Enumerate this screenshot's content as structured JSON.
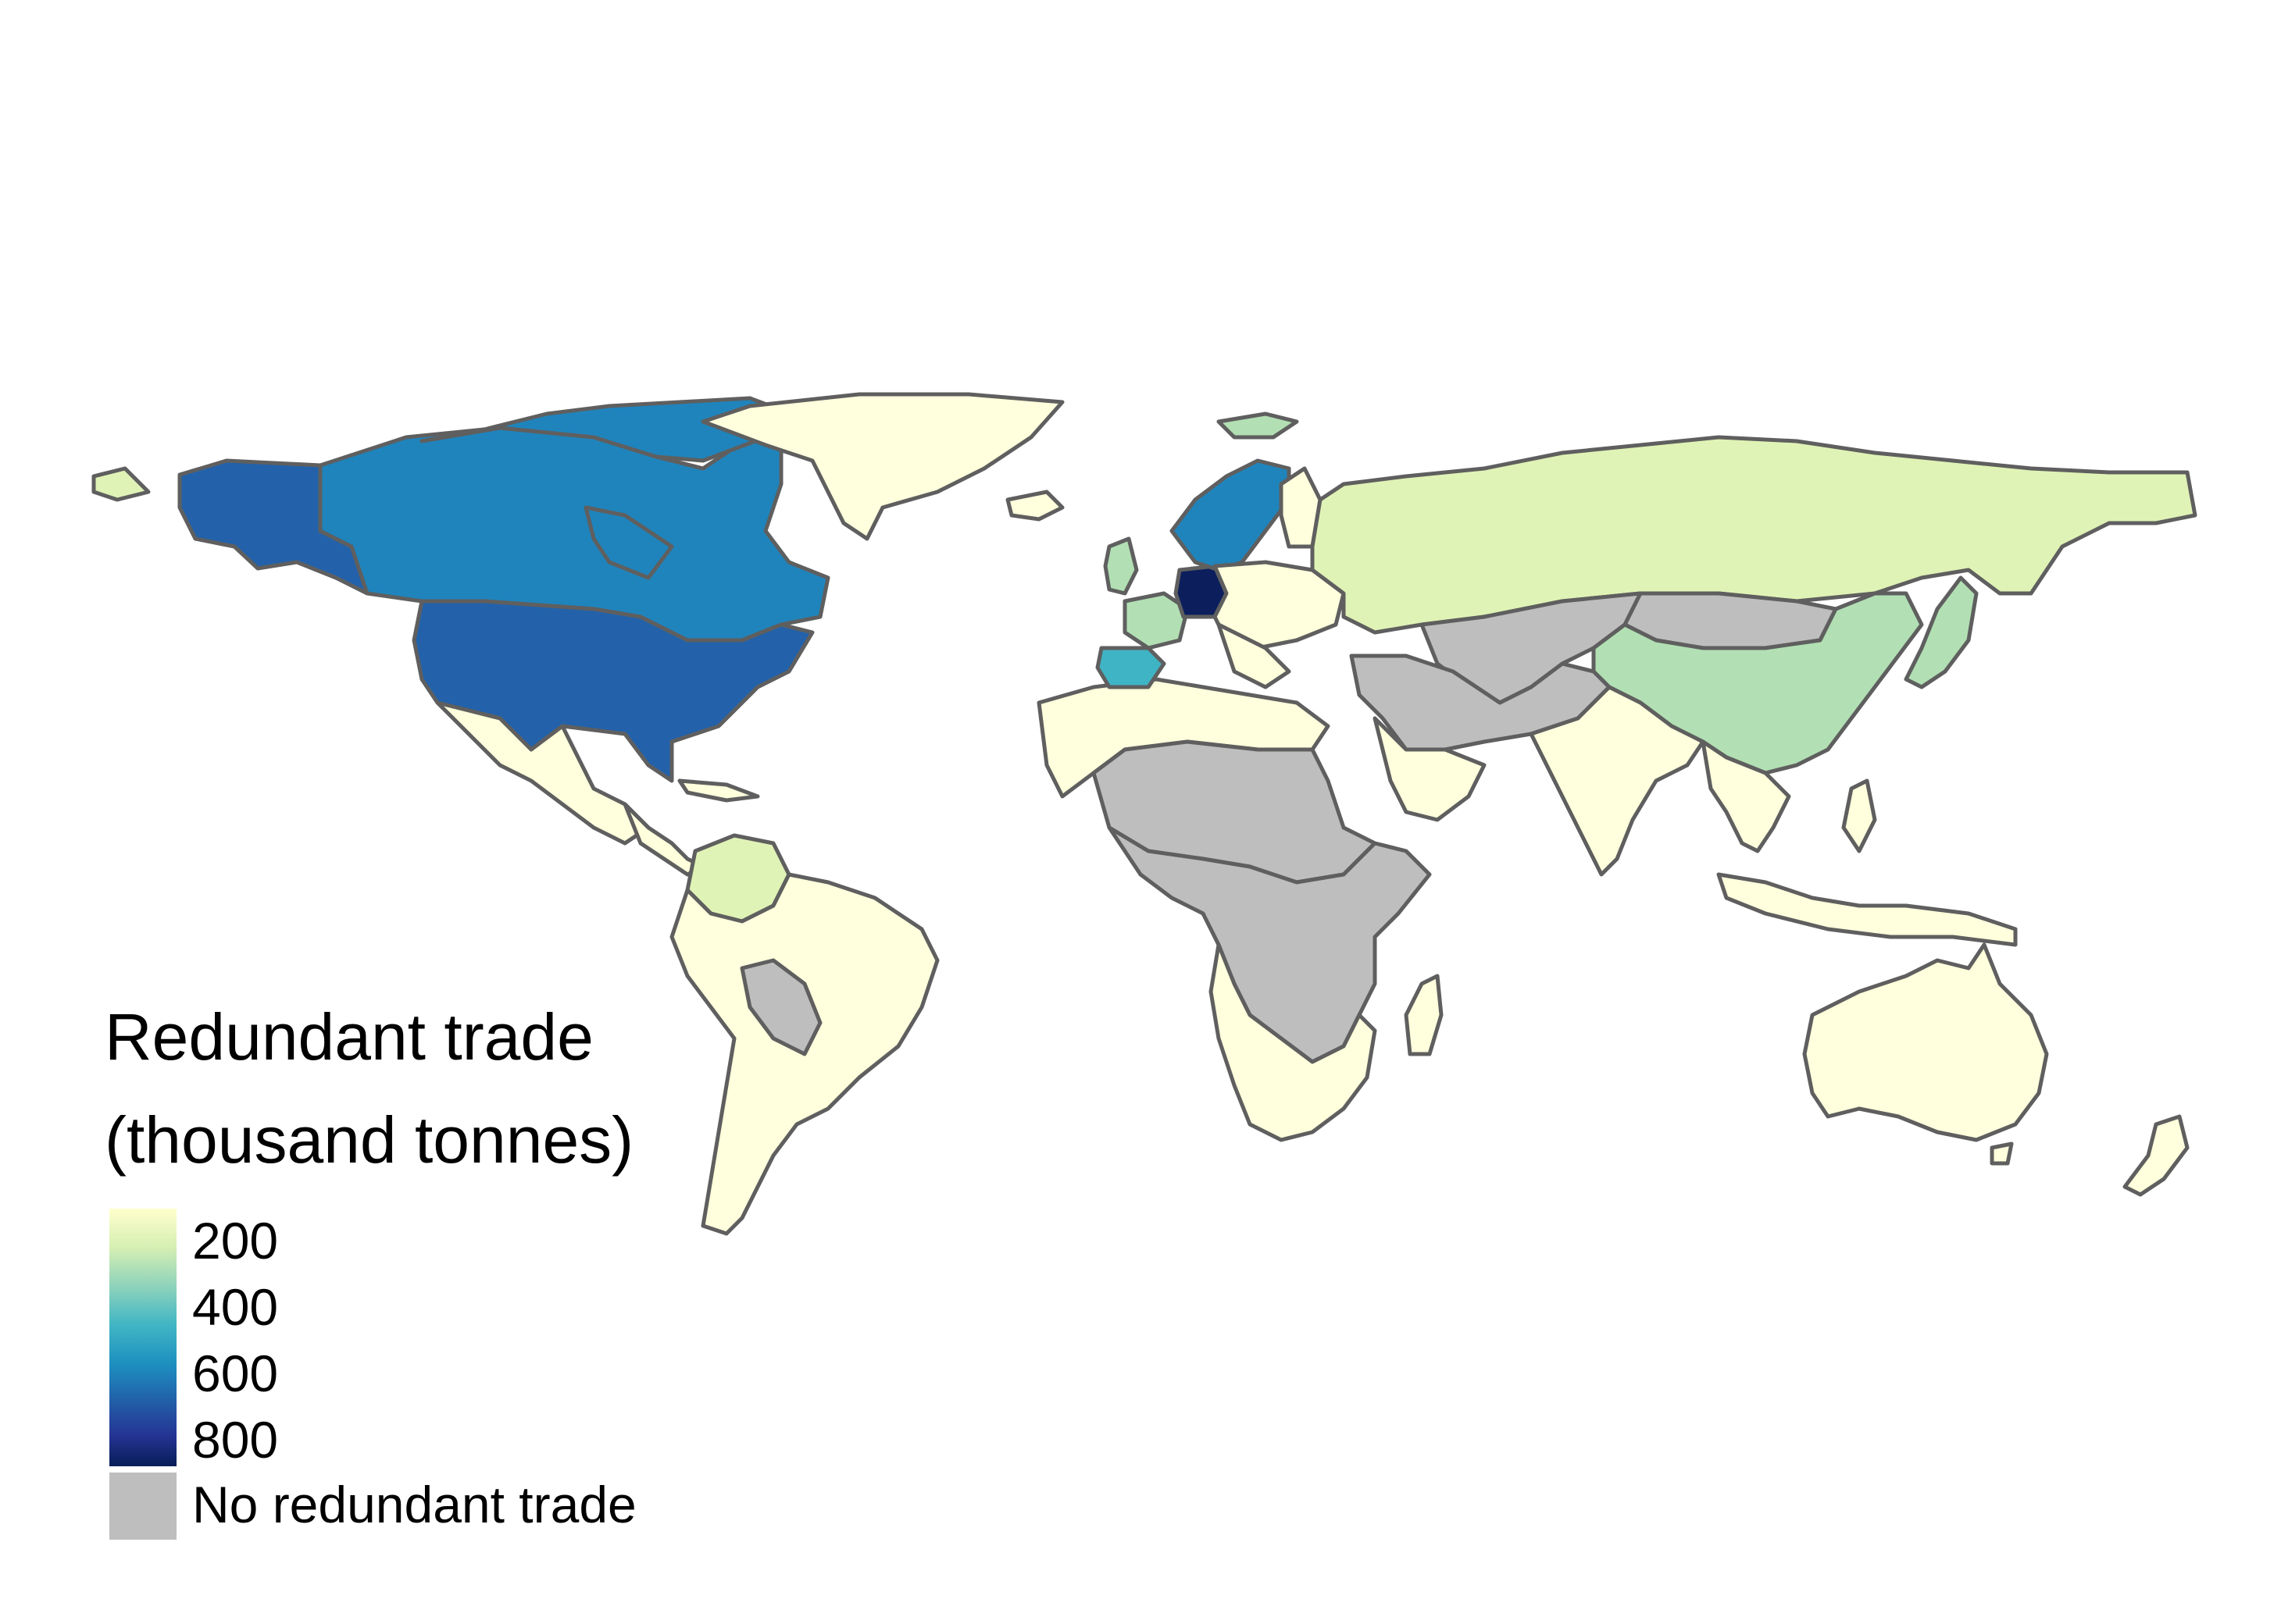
{
  "legend": {
    "title_line1": "Redundant trade",
    "title_line2": "(thousand tonnes)",
    "ticks": [
      "200",
      "400",
      "600",
      "800"
    ],
    "na_label": "No redundant trade",
    "na_color": "#bebebe",
    "gradient_colors": [
      "#ffffcc",
      "#c7e9b4",
      "#7fcdbb",
      "#41b6c4",
      "#1d91c0",
      "#225ea8",
      "#253494",
      "#081d58"
    ]
  },
  "palette": {
    "very_low": "#ffffdd",
    "low": "#e0f3b6",
    "mid_low": "#b2e0b4",
    "mid": "#3fb4c4",
    "mid_high": "#1f84bc",
    "high": "#2362aa",
    "very_high": "#0c1f5c",
    "none": "#bebebe",
    "border": "#5f5f5f"
  },
  "regions": [
    {
      "name": "canada-region",
      "level": "mid_high"
    },
    {
      "name": "alaska-region",
      "level": "high"
    },
    {
      "name": "usa-region",
      "level": "high"
    },
    {
      "name": "mexico-region",
      "level": "very_low"
    },
    {
      "name": "greenland-region",
      "level": "very_low"
    },
    {
      "name": "south-america-region",
      "level": "very_low"
    },
    {
      "name": "colombia-region",
      "level": "low"
    },
    {
      "name": "bolivia-paraguay-region",
      "level": "none"
    },
    {
      "name": "russia-region",
      "level": "low"
    },
    {
      "name": "china-region",
      "level": "mid_low"
    },
    {
      "name": "mongolia-region",
      "level": "none"
    },
    {
      "name": "central-asia-region",
      "level": "none"
    },
    {
      "name": "middle-east-region",
      "level": "none"
    },
    {
      "name": "india-region",
      "level": "very_low"
    },
    {
      "name": "sahara-region",
      "level": "none"
    },
    {
      "name": "central-africa-region",
      "level": "none"
    },
    {
      "name": "north-africa-region",
      "level": "very_low"
    },
    {
      "name": "southern-africa-region",
      "level": "very_low"
    },
    {
      "name": "madagascar-region",
      "level": "very_low"
    },
    {
      "name": "scandinavia-region",
      "level": "mid_high"
    },
    {
      "name": "germany-region",
      "level": "very_high"
    },
    {
      "name": "spain-region",
      "level": "mid"
    },
    {
      "name": "france-region",
      "level": "mid_low"
    },
    {
      "name": "uk-region",
      "level": "mid_low"
    },
    {
      "name": "australia-region",
      "level": "very_low"
    },
    {
      "name": "japan-region",
      "level": "mid_low"
    },
    {
      "name": "southeast-asia-region",
      "level": "very_low"
    },
    {
      "name": "indonesia-region",
      "level": "very_low"
    },
    {
      "name": "new-zealand-region",
      "level": "very_low"
    }
  ]
}
